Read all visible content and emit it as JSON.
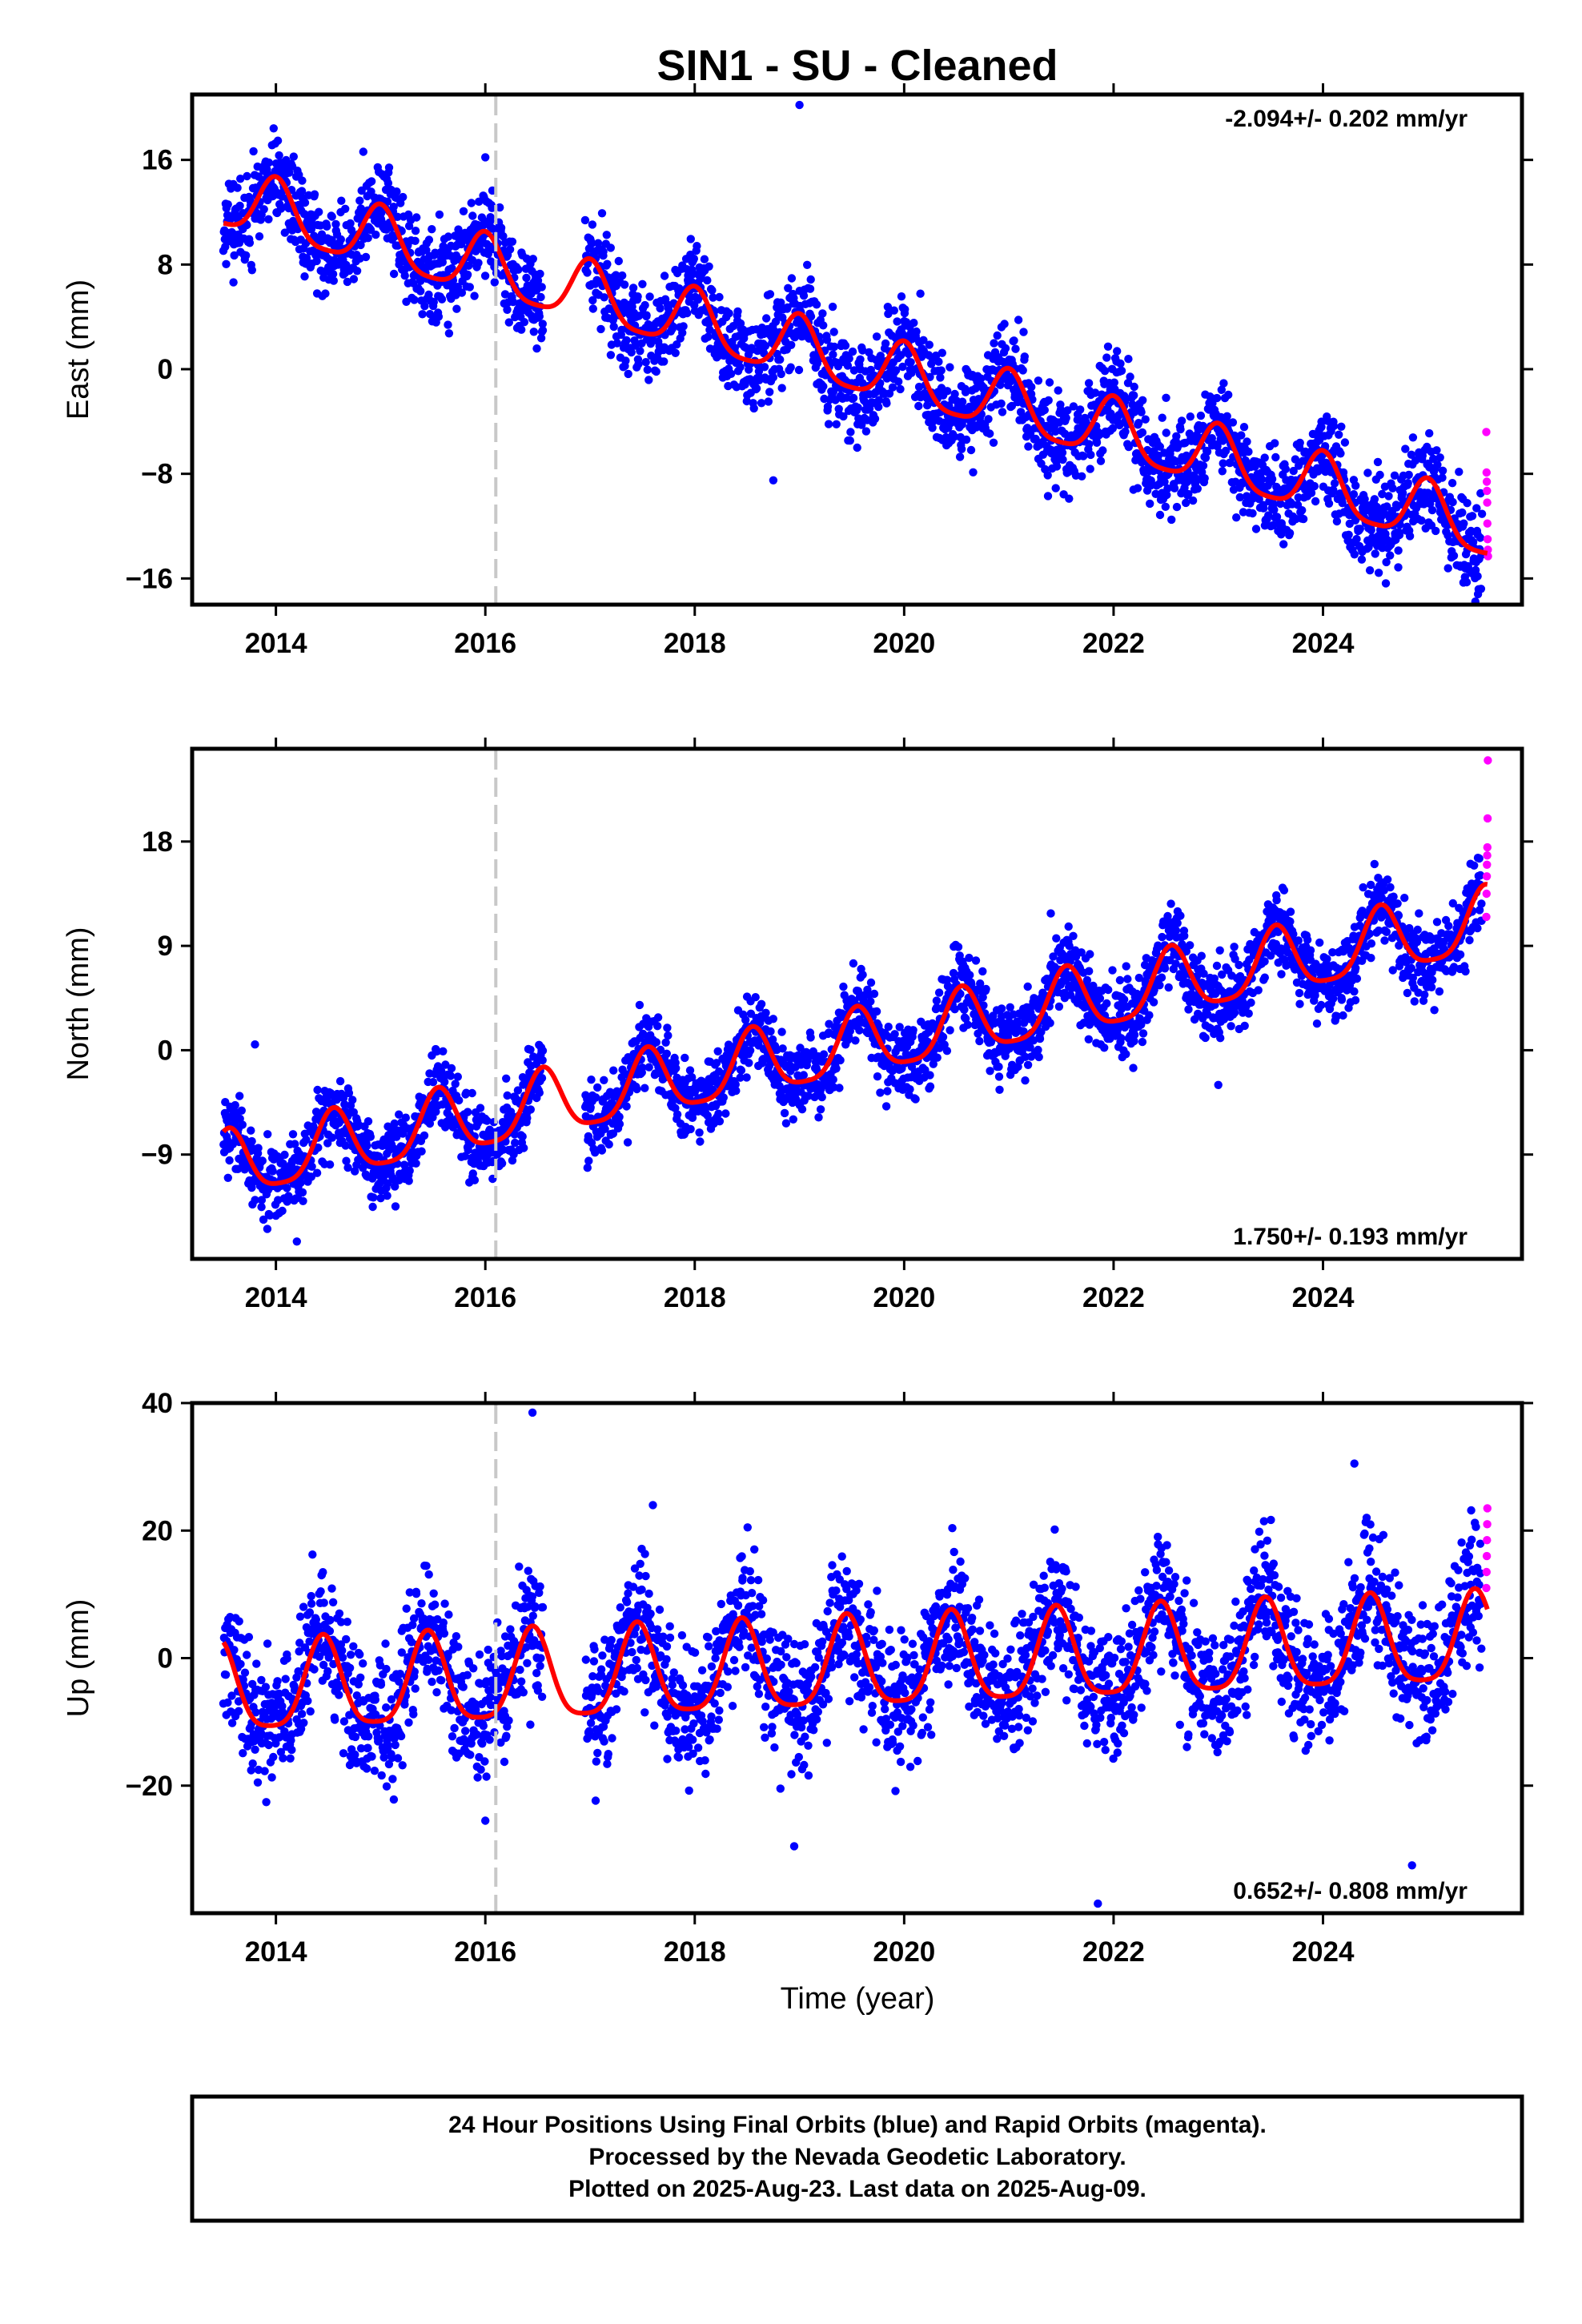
{
  "chart_data": [
    {
      "type": "scatter",
      "title": "SIN1  - SU - Cleaned",
      "ylabel": "East (mm)",
      "xlabel": "",
      "xlim": [
        2013.2,
        2025.9
      ],
      "ylim": [
        -18,
        21
      ],
      "x_ticks": [
        2014,
        2016,
        2018,
        2020,
        2022,
        2024
      ],
      "x_tick_labels": [
        "2014",
        "2016",
        "2018",
        "2020",
        "2022",
        "2024"
      ],
      "y_ticks": [
        16,
        8,
        0,
        -8,
        -16
      ],
      "y_tick_labels": [
        "16",
        "8",
        "0",
        "−8",
        "−16"
      ],
      "rate": "-2.094+/- 0.202 mm/yr",
      "rate_position": "top-right",
      "grid": false,
      "equipment_change": 2016.1,
      "trend": {
        "intercept_year": 2019.5,
        "intercept_value": 0.4,
        "slope": -2.094,
        "annual_amplitude": 2.3,
        "annual_phase_year": 2014.0
      },
      "noise_sd": 1.8,
      "data_gap": [
        2016.55,
        2016.95
      ],
      "final_orbit_range": [
        2013.5,
        2025.52
      ],
      "rapid_orbit_values": [
        -4.8,
        -7.9,
        -8.6,
        -9.3,
        -10.2,
        -11.8,
        -13.0,
        -13.8,
        -14.3
      ],
      "outliers": [
        [
          2019.0,
          20.2
        ],
        [
          2016.0,
          16.2
        ],
        [
          2025.48,
          -17.2
        ],
        [
          2018.75,
          -8.5
        ]
      ],
      "series": [
        {
          "name": "Final Orbits",
          "color": "#0000ff"
        },
        {
          "name": "Rapid Orbits",
          "color": "#ff00ff"
        },
        {
          "name": "Model",
          "color": "#ff0000"
        }
      ]
    },
    {
      "type": "scatter",
      "ylabel": "North (mm)",
      "xlabel": "",
      "xlim": [
        2013.2,
        2025.9
      ],
      "ylim": [
        -18,
        26
      ],
      "x_ticks": [
        2014,
        2016,
        2018,
        2020,
        2022,
        2024
      ],
      "x_tick_labels": [
        "2014",
        "2016",
        "2018",
        "2020",
        "2022",
        "2024"
      ],
      "y_ticks": [
        18,
        9,
        0,
        -9
      ],
      "y_tick_labels": [
        "18",
        "9",
        "0",
        "−9"
      ],
      "rate": "1.750+/- 0.193 mm/yr",
      "rate_position": "bottom-right",
      "grid": false,
      "equipment_change": 2016.1,
      "trend": {
        "intercept_year": 2019.5,
        "intercept_value": 0.3,
        "slope": 1.75,
        "annual_amplitude": 2.8,
        "annual_phase_year": 2013.55
      },
      "noise_sd": 1.6,
      "data_gap": [
        2016.55,
        2016.95
      ],
      "final_orbit_range": [
        2013.5,
        2025.52
      ],
      "rapid_orbit_values": [
        11.5,
        13.5,
        15.0,
        16.0,
        16.8,
        17.5,
        20.0,
        25.0
      ],
      "outliers": [
        [
          2013.8,
          0.5
        ],
        [
          2014.2,
          -16.5
        ],
        [
          2023.0,
          -3.0
        ],
        [
          2021.4,
          11.8
        ]
      ],
      "series": [
        {
          "name": "Final Orbits",
          "color": "#0000ff"
        },
        {
          "name": "Rapid Orbits",
          "color": "#ff00ff"
        },
        {
          "name": "Model",
          "color": "#ff0000"
        }
      ]
    },
    {
      "type": "scatter",
      "ylabel": "Up (mm)",
      "xlabel": "Time (year)",
      "xlim": [
        2013.2,
        2025.9
      ],
      "ylim": [
        -40,
        40
      ],
      "x_ticks": [
        2014,
        2016,
        2018,
        2020,
        2022,
        2024
      ],
      "x_tick_labels": [
        "2014",
        "2016",
        "2018",
        "2020",
        "2022",
        "2024"
      ],
      "y_ticks": [
        40,
        20,
        0,
        -20
      ],
      "y_tick_labels": [
        "40",
        "20",
        "0",
        "−20"
      ],
      "rate": "0.652+/- 0.808 mm/yr",
      "rate_position": "bottom-right",
      "grid": false,
      "equipment_change": 2016.1,
      "trend": {
        "intercept_year": 2019.5,
        "intercept_value": -1.5,
        "slope": 0.652,
        "annual_amplitude": 7.0,
        "annual_phase_year": 2013.45
      },
      "noise_sd": 5.0,
      "data_gap": [
        2016.55,
        2016.95
      ],
      "final_orbit_range": [
        2013.5,
        2025.52
      ],
      "rapid_orbit_values": [
        11.0,
        13.5,
        16.0,
        18.5,
        21.0,
        23.5
      ],
      "outliers": [
        [
          2016.45,
          38.5
        ],
        [
          2021.85,
          -38.5
        ],
        [
          2018.95,
          -29.5
        ],
        [
          2024.85,
          -32.5
        ],
        [
          2016.0,
          -25.5
        ],
        [
          2024.3,
          30.5
        ],
        [
          2017.6,
          24.0
        ]
      ],
      "series": [
        {
          "name": "Final Orbits",
          "color": "#0000ff"
        },
        {
          "name": "Rapid Orbits",
          "color": "#ff00ff"
        },
        {
          "name": "Model",
          "color": "#ff0000"
        }
      ]
    }
  ],
  "footer": {
    "line1": "24 Hour Positions Using Final Orbits (blue) and Rapid Orbits (magenta).",
    "line2": "Processed by the Nevada Geodetic Laboratory.",
    "line3": "Plotted on 2025-Aug-23. Last data on 2025-Aug-09."
  }
}
